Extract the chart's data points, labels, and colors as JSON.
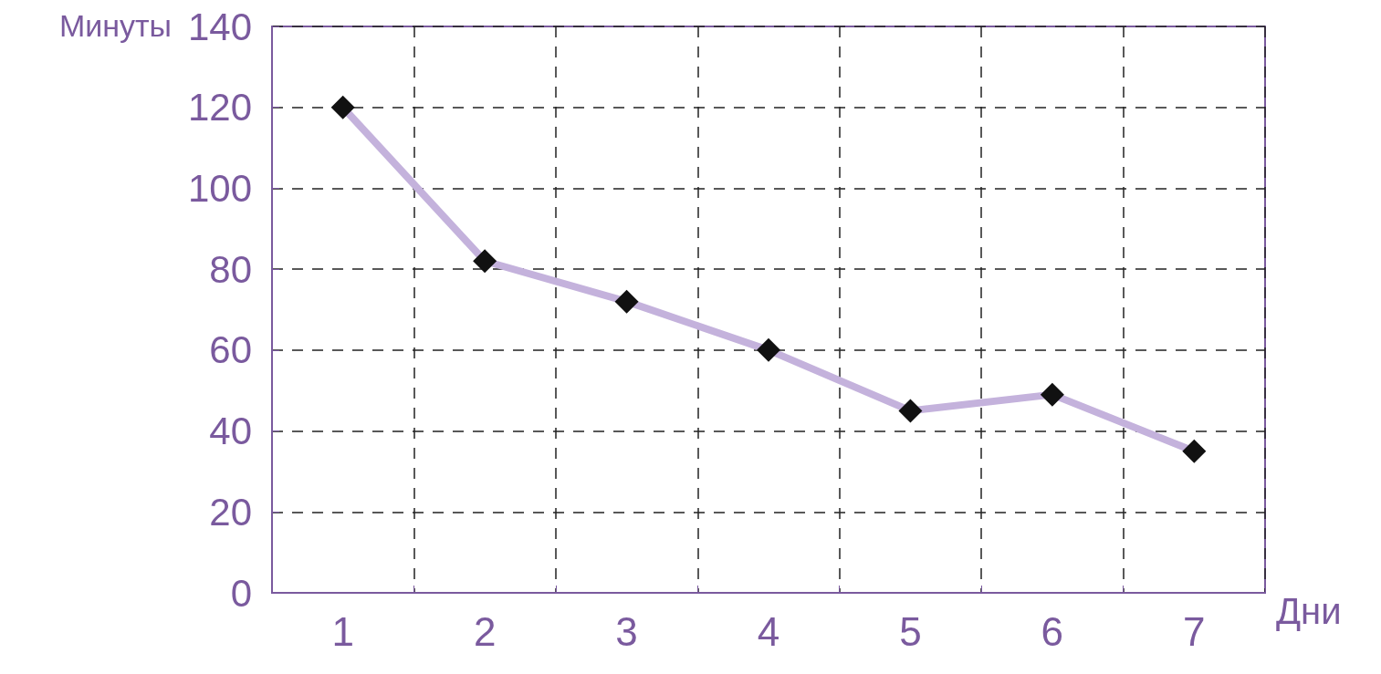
{
  "chart_data": {
    "type": "line",
    "xlabel": "Дни",
    "ylabel": "Минуты",
    "categories": [
      "1",
      "2",
      "3",
      "4",
      "5",
      "6",
      "7"
    ],
    "series": [
      {
        "color": "#c4b2dc",
        "values": [
          120,
          82,
          72,
          60,
          45,
          49,
          35
        ]
      }
    ],
    "ylim": [
      0,
      140
    ],
    "yticks": [
      0,
      20,
      40,
      60,
      80,
      100,
      120,
      140
    ],
    "grid": true,
    "marker": "diamond",
    "line_style": "solid"
  }
}
